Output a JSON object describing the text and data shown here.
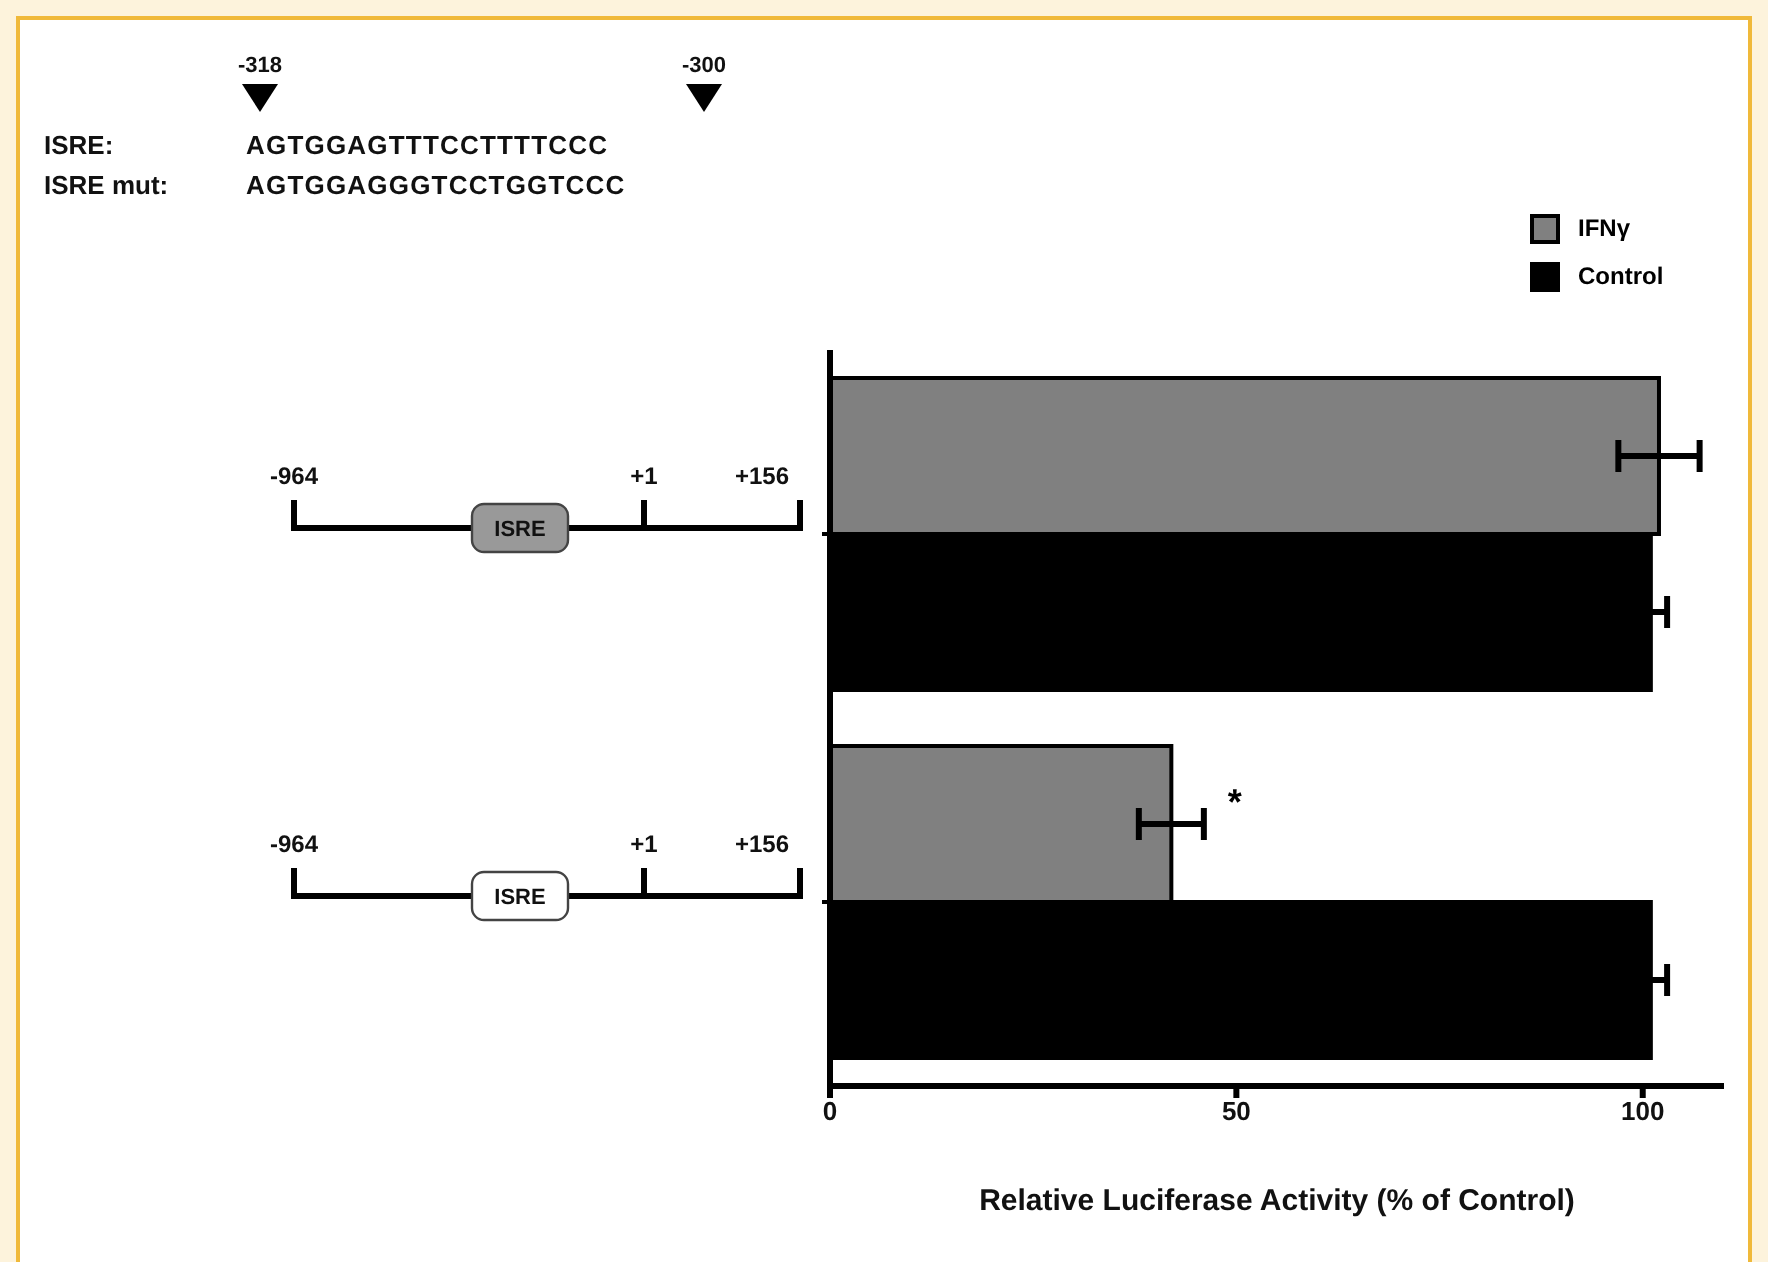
{
  "chart_data": {
    "type": "bar",
    "orientation": "horizontal",
    "xlabel": "Relative Luciferase Activity  (% of Control)",
    "categories": [
      null,
      null
    ],
    "series": [
      {
        "name": "IFNγ",
        "color": "#808080",
        "values": [
          102,
          42
        ],
        "errors": [
          5,
          4
        ]
      },
      {
        "name": "Control",
        "color": "#000000",
        "values": [
          101,
          101
        ],
        "errors": [
          2,
          2
        ]
      }
    ],
    "xlim": [
      0,
      110
    ],
    "xticks": [
      0,
      50,
      100
    ],
    "legend": "top right",
    "annotations": [
      "-318",
      "-300",
      "ISRE:",
      "AGTGGAGTTTCCTTTTCCC",
      "ISRE mut:",
      "AGTGGAGGGTCCTGGTCCC",
      "-964",
      "ISRE",
      "+1",
      "+156",
      "-964",
      "ISRE",
      "+1",
      "+156",
      "*"
    ]
  }
}
